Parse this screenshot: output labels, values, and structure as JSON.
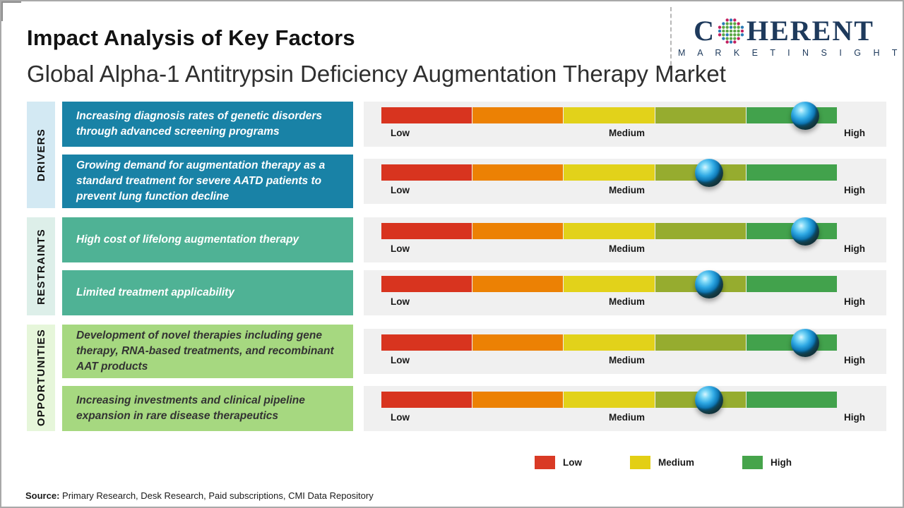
{
  "header": {
    "title": "Impact Analysis of Key Factors",
    "subtitle": "Global Alpha-1 Antitrypsin Deficiency Augmentation Therapy Market",
    "logo": {
      "brand_prefix": "C",
      "brand_suffix": "HERENT",
      "tagline": "M A R K E T   I N S I G H T S",
      "brand_color": "#1e3a5c",
      "globe_icon": "dotted-globe"
    }
  },
  "categories": [
    {
      "label": "DRIVERS",
      "box_color": "#1982a6",
      "strip_color": "#d3e9f3",
      "text_color": "#ffffff"
    },
    {
      "label": "RESTRAINTS",
      "box_color": "#4fb295",
      "strip_color": "#ddefe9",
      "text_color": "#ffffff"
    },
    {
      "label": "OPPORTUNITIES",
      "box_color": "#a6d880",
      "strip_color": "#e6f6da",
      "text_color": "#333333"
    }
  ],
  "scale_labels": {
    "low": "Low",
    "medium": "Medium",
    "high": "High"
  },
  "gauge": {
    "segment_colors": [
      "#d8341f",
      "#ec8104",
      "#e2d21a",
      "#96ac2f",
      "#42a24c"
    ],
    "marker_style": "glossy-blue-sphere"
  },
  "chart_data": {
    "type": "table",
    "title": "Impact Analysis of Key Factors",
    "subtitle": "Global Alpha-1 Antitrypsin Deficiency Augmentation Therapy Market",
    "scale": {
      "min_label": "Low",
      "mid_label": "Medium",
      "max_label": "High",
      "range_percent": [
        0,
        100
      ]
    },
    "rows": [
      {
        "category": "DRIVERS",
        "factor": "Increasing diagnosis rates of genetic disorders through advanced screening programs",
        "impact_percent": 93,
        "impact_reading": "High"
      },
      {
        "category": "DRIVERS",
        "factor": "Growing demand for augmentation therapy as a standard treatment for severe AATD patients to prevent lung function decline",
        "impact_percent": 72,
        "impact_reading": "Medium-High"
      },
      {
        "category": "RESTRAINTS",
        "factor": "High cost of lifelong augmentation therapy",
        "impact_percent": 93,
        "impact_reading": "High"
      },
      {
        "category": "RESTRAINTS",
        "factor": "Limited treatment applicability",
        "impact_percent": 72,
        "impact_reading": "Medium-High"
      },
      {
        "category": "OPPORTUNITIES",
        "factor": "Development of novel therapies including gene therapy, RNA-based treatments, and recombinant AAT products",
        "impact_percent": 93,
        "impact_reading": "High"
      },
      {
        "category": "OPPORTUNITIES",
        "factor": "Increasing investments and clinical pipeline expansion in rare disease therapeutics",
        "impact_percent": 72,
        "impact_reading": "Medium-High"
      }
    ]
  },
  "legend": [
    {
      "label": "Low",
      "color": "#d93a25"
    },
    {
      "label": "Medium",
      "color": "#e3cf14"
    },
    {
      "label": "High",
      "color": "#46a44b"
    }
  ],
  "footer": {
    "source_label": "Source:",
    "source_text": " Primary Research, Desk Research, Paid subscriptions, CMI Data Repository"
  }
}
